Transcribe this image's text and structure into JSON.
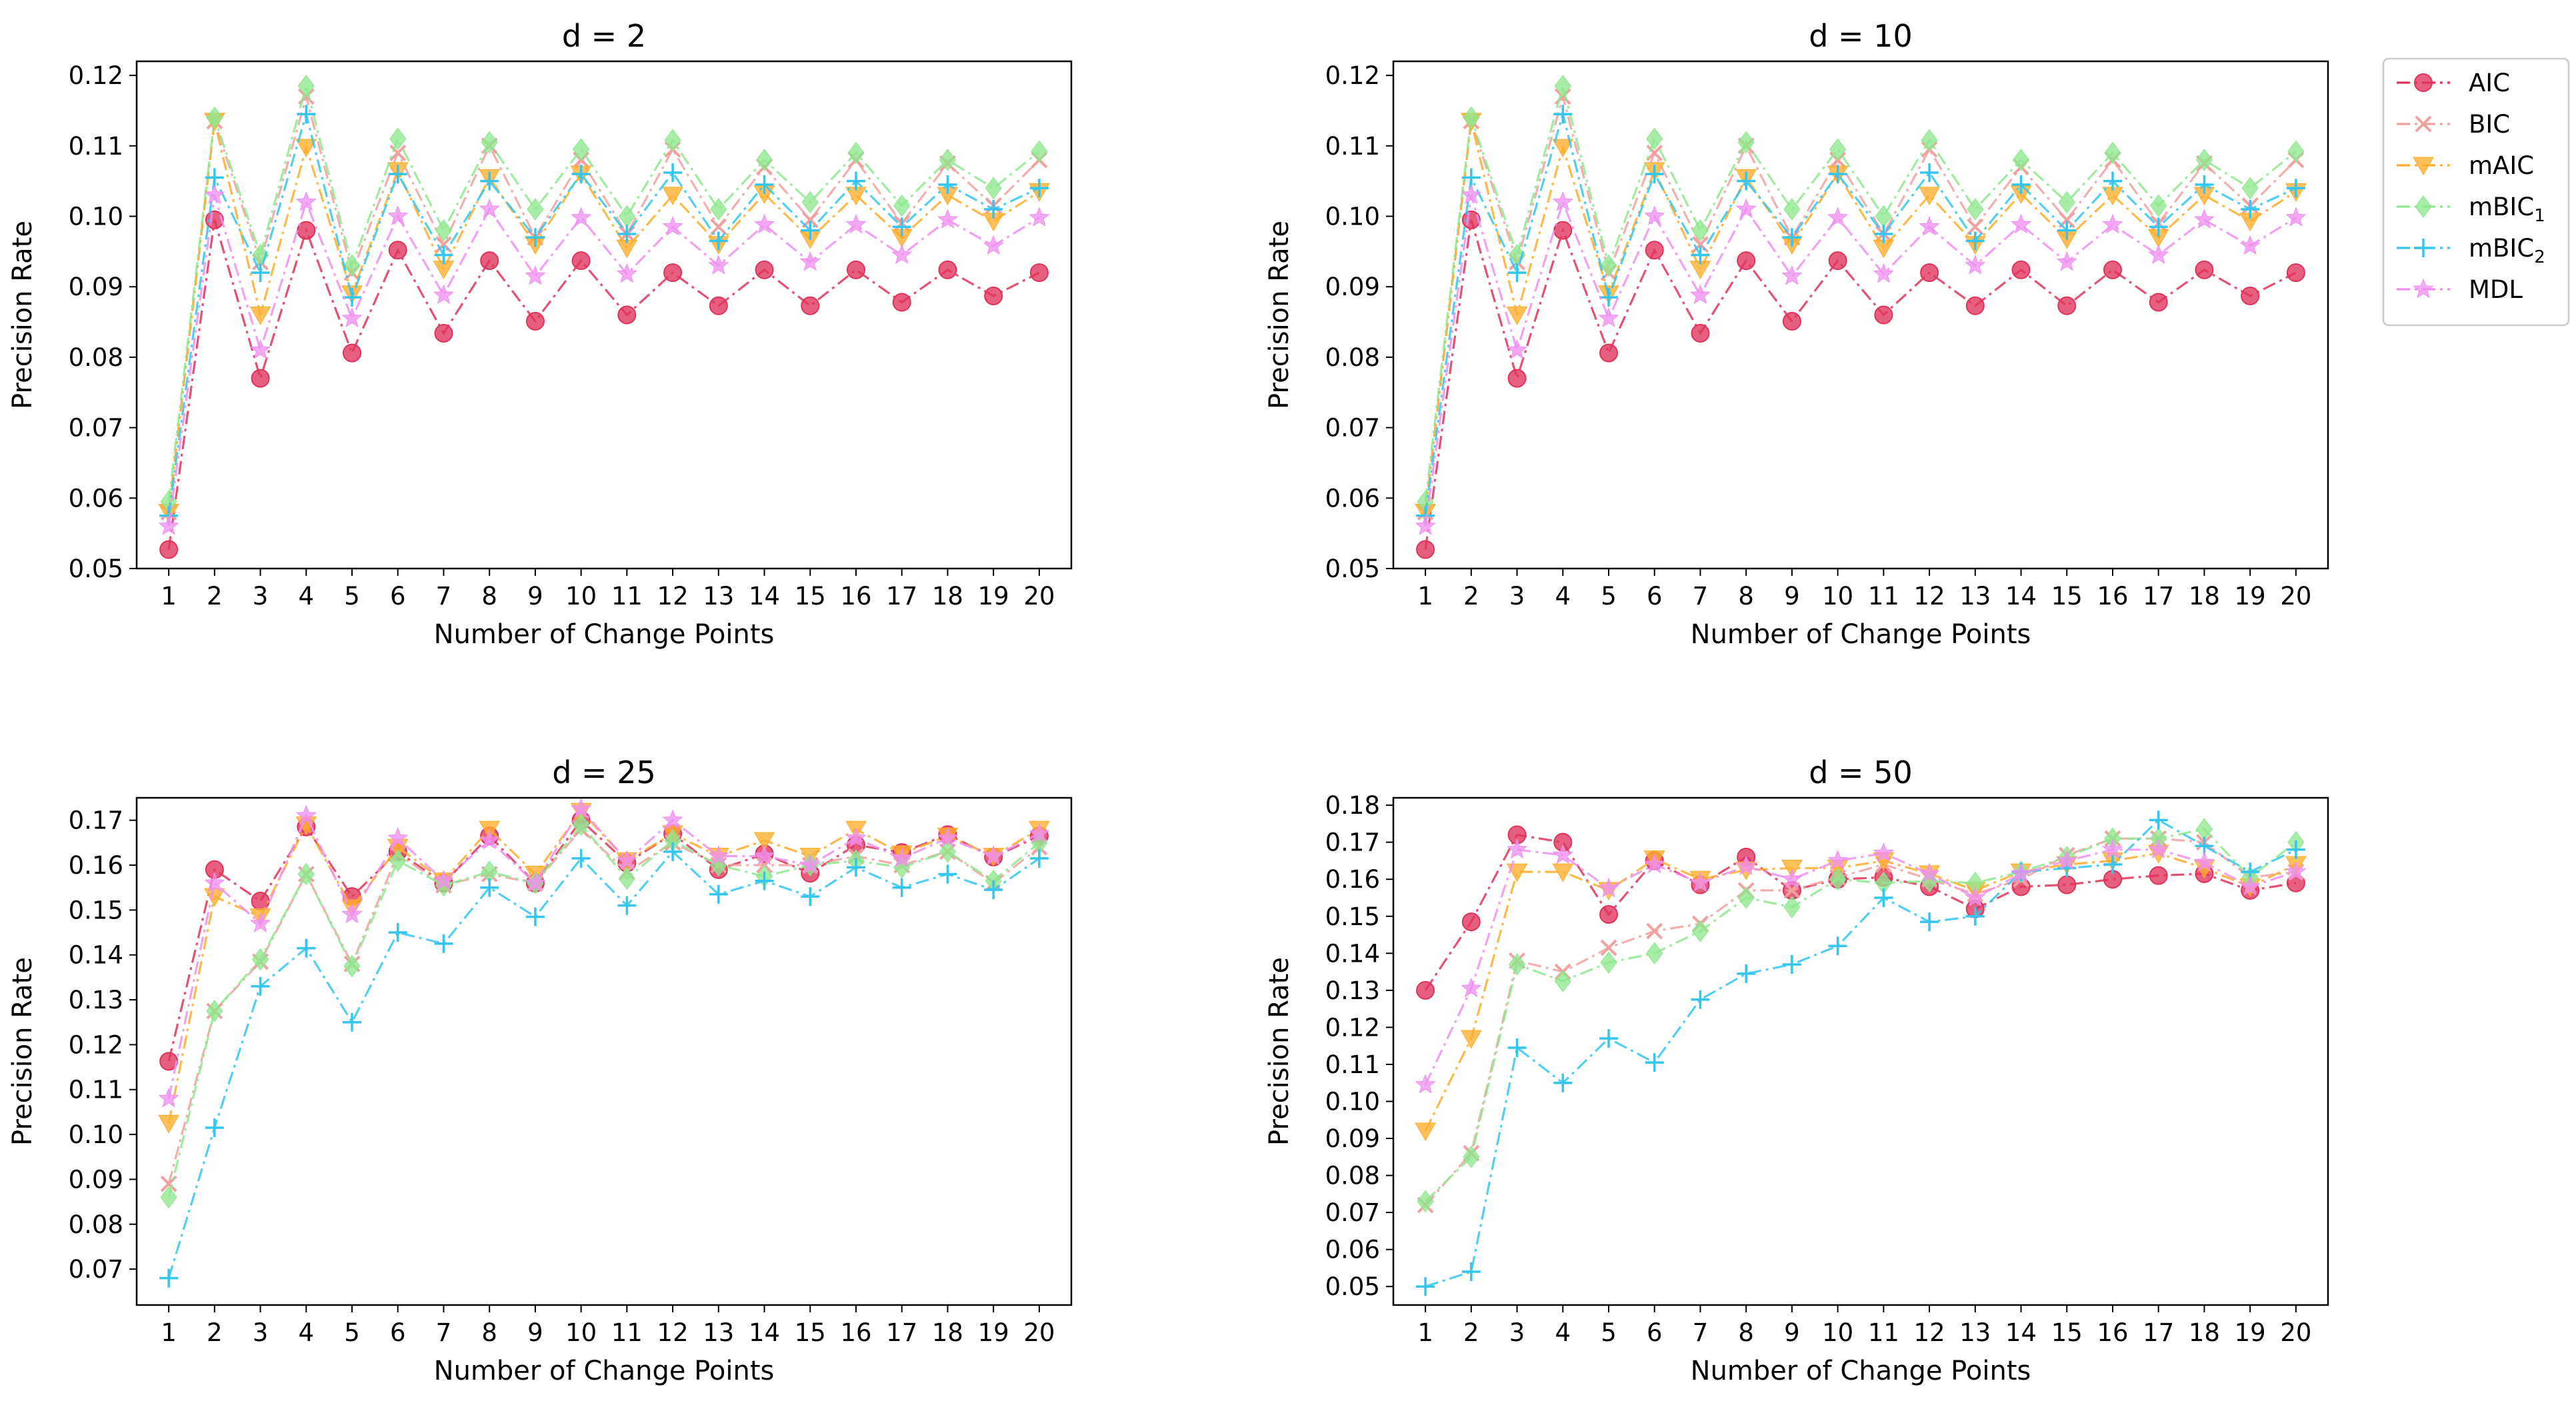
{
  "chart_data": [
    {
      "type": "line",
      "title": "d = 2",
      "xlabel": "Number of Change Points",
      "ylabel": "Precision Rate",
      "ylim": [
        0.05,
        0.122
      ],
      "yticks": [
        0.05,
        0.06,
        0.07,
        0.08,
        0.09,
        0.1,
        0.11,
        0.12
      ],
      "ytick_labels": [
        "0.05",
        "0.06",
        "0.07",
        "0.08",
        "0.09",
        "0.10",
        "0.11",
        "0.12"
      ],
      "x": [
        1,
        2,
        3,
        4,
        5,
        6,
        7,
        8,
        9,
        10,
        11,
        12,
        13,
        14,
        15,
        16,
        17,
        18,
        19,
        20
      ],
      "series": [
        {
          "name": "AIC",
          "values": [
            0.0527,
            0.0995,
            0.077,
            0.098,
            0.0806,
            0.0952,
            0.0834,
            0.0937,
            0.0851,
            0.0937,
            0.086,
            0.092,
            0.0873,
            0.0924,
            0.0873,
            0.0924,
            0.0878,
            0.0924,
            0.0887,
            0.092
          ]
        },
        {
          "name": "BIC",
          "values": [
            0.058,
            0.1135,
            0.0935,
            0.117,
            0.092,
            0.109,
            0.096,
            0.11,
            0.097,
            0.108,
            0.0975,
            0.1095,
            0.0985,
            0.107,
            0.0995,
            0.108,
            0.099,
            0.1075,
            0.1015,
            0.108
          ]
        },
        {
          "name": "mAIC",
          "values": [
            0.058,
            0.1135,
            0.086,
            0.1098,
            0.089,
            0.1065,
            0.0925,
            0.1055,
            0.096,
            0.106,
            0.0955,
            0.103,
            0.096,
            0.1032,
            0.0968,
            0.103,
            0.097,
            0.103,
            0.0993,
            0.1035
          ]
        },
        {
          "name": "mBIC1",
          "values": [
            0.0595,
            0.114,
            0.0945,
            0.1185,
            0.093,
            0.111,
            0.098,
            0.1105,
            0.101,
            0.1095,
            0.1,
            0.1108,
            0.101,
            0.108,
            0.102,
            0.109,
            0.1015,
            0.108,
            0.104,
            0.1092
          ]
        },
        {
          "name": "mBIC2",
          "values": [
            0.0575,
            0.1055,
            0.092,
            0.1145,
            0.0885,
            0.106,
            0.0945,
            0.105,
            0.097,
            0.106,
            0.0975,
            0.1062,
            0.0965,
            0.1045,
            0.098,
            0.105,
            0.0985,
            0.1045,
            0.101,
            0.104
          ]
        },
        {
          "name": "MDL",
          "values": [
            0.056,
            0.103,
            0.081,
            0.102,
            0.0855,
            0.1,
            0.0888,
            0.101,
            0.0915,
            0.0998,
            0.0918,
            0.0985,
            0.093,
            0.0988,
            0.0935,
            0.0988,
            0.0945,
            0.0995,
            0.0958,
            0.0998
          ]
        }
      ]
    },
    {
      "type": "line",
      "title": "d = 10",
      "xlabel": "Number of Change Points",
      "ylabel": "Precision Rate",
      "ylim": [
        0.05,
        0.122
      ],
      "yticks": [
        0.05,
        0.06,
        0.07,
        0.08,
        0.09,
        0.1,
        0.11,
        0.12
      ],
      "ytick_labels": [
        "0.05",
        "0.06",
        "0.07",
        "0.08",
        "0.09",
        "0.10",
        "0.11",
        "0.12"
      ],
      "x": [
        1,
        2,
        3,
        4,
        5,
        6,
        7,
        8,
        9,
        10,
        11,
        12,
        13,
        14,
        15,
        16,
        17,
        18,
        19,
        20
      ],
      "series": [
        {
          "name": "AIC",
          "values": [
            0.0527,
            0.0995,
            0.077,
            0.098,
            0.0806,
            0.0952,
            0.0834,
            0.0937,
            0.0851,
            0.0937,
            0.086,
            0.092,
            0.0873,
            0.0924,
            0.0873,
            0.0924,
            0.0878,
            0.0924,
            0.0887,
            0.092
          ]
        },
        {
          "name": "BIC",
          "values": [
            0.058,
            0.1135,
            0.0935,
            0.117,
            0.092,
            0.109,
            0.096,
            0.11,
            0.097,
            0.108,
            0.0975,
            0.1095,
            0.0985,
            0.107,
            0.0995,
            0.108,
            0.099,
            0.1075,
            0.1015,
            0.108
          ]
        },
        {
          "name": "mAIC",
          "values": [
            0.058,
            0.1135,
            0.086,
            0.1098,
            0.089,
            0.1065,
            0.0925,
            0.1055,
            0.096,
            0.106,
            0.0955,
            0.103,
            0.096,
            0.1032,
            0.0968,
            0.103,
            0.097,
            0.103,
            0.0993,
            0.1035
          ]
        },
        {
          "name": "mBIC1",
          "values": [
            0.0595,
            0.114,
            0.0945,
            0.1185,
            0.093,
            0.111,
            0.098,
            0.1105,
            0.101,
            0.1095,
            0.1,
            0.1108,
            0.101,
            0.108,
            0.102,
            0.109,
            0.1015,
            0.108,
            0.104,
            0.1092
          ]
        },
        {
          "name": "mBIC2",
          "values": [
            0.0575,
            0.1055,
            0.092,
            0.1145,
            0.0885,
            0.106,
            0.0945,
            0.105,
            0.097,
            0.106,
            0.0975,
            0.1062,
            0.0965,
            0.1045,
            0.098,
            0.105,
            0.0985,
            0.1045,
            0.101,
            0.104
          ]
        },
        {
          "name": "MDL",
          "values": [
            0.056,
            0.103,
            0.081,
            0.102,
            0.0855,
            0.1,
            0.0888,
            0.101,
            0.0915,
            0.0998,
            0.0918,
            0.0985,
            0.093,
            0.0988,
            0.0935,
            0.0988,
            0.0945,
            0.0995,
            0.0958,
            0.0998
          ]
        }
      ]
    },
    {
      "type": "line",
      "title": "d = 25",
      "xlabel": "Number of Change Points",
      "ylabel": "Precision Rate",
      "ylim": [
        0.062,
        0.175
      ],
      "yticks": [
        0.07,
        0.08,
        0.09,
        0.1,
        0.11,
        0.12,
        0.13,
        0.14,
        0.15,
        0.16,
        0.17
      ],
      "ytick_labels": [
        "0.07",
        "0.08",
        "0.09",
        "0.10",
        "0.11",
        "0.12",
        "0.13",
        "0.14",
        "0.15",
        "0.16",
        "0.17"
      ],
      "x": [
        1,
        2,
        3,
        4,
        5,
        6,
        7,
        8,
        9,
        10,
        11,
        12,
        13,
        14,
        15,
        16,
        17,
        18,
        19,
        20
      ],
      "series": [
        {
          "name": "AIC",
          "values": [
            0.1163,
            0.159,
            0.152,
            0.1685,
            0.153,
            0.163,
            0.156,
            0.1665,
            0.156,
            0.17,
            0.1605,
            0.167,
            0.159,
            0.1625,
            0.1582,
            0.1645,
            0.1628,
            0.1668,
            0.1618,
            0.1665
          ]
        },
        {
          "name": "BIC",
          "values": [
            0.089,
            0.1275,
            0.1385,
            0.158,
            0.138,
            0.1625,
            0.1555,
            0.158,
            0.156,
            0.168,
            0.1585,
            0.165,
            0.16,
            0.16,
            0.16,
            0.162,
            0.16,
            0.163,
            0.156,
            0.164
          ]
        },
        {
          "name": "mAIC",
          "values": [
            0.1025,
            0.153,
            0.1485,
            0.169,
            0.1505,
            0.164,
            0.1565,
            0.168,
            0.158,
            0.172,
            0.161,
            0.167,
            0.162,
            0.1655,
            0.162,
            0.168,
            0.1625,
            0.1665,
            0.162,
            0.168
          ]
        },
        {
          "name": "mBIC1",
          "values": [
            0.086,
            0.1275,
            0.139,
            0.158,
            0.1375,
            0.161,
            0.1555,
            0.1585,
            0.156,
            0.169,
            0.157,
            0.1655,
            0.16,
            0.1575,
            0.16,
            0.161,
            0.1595,
            0.163,
            0.1565,
            0.165
          ]
        },
        {
          "name": "mBIC2",
          "values": [
            0.068,
            0.1015,
            0.133,
            0.1415,
            0.125,
            0.145,
            0.1425,
            0.155,
            0.1485,
            0.1615,
            0.151,
            0.163,
            0.1535,
            0.1565,
            0.153,
            0.1595,
            0.155,
            0.158,
            0.1545,
            0.1615
          ]
        },
        {
          "name": "MDL",
          "values": [
            0.108,
            0.156,
            0.147,
            0.171,
            0.149,
            0.166,
            0.1565,
            0.1655,
            0.156,
            0.1725,
            0.161,
            0.17,
            0.162,
            0.162,
            0.16,
            0.166,
            0.1615,
            0.166,
            0.162,
            0.167
          ]
        }
      ]
    },
    {
      "type": "line",
      "title": "d = 50",
      "xlabel": "Number of Change Points",
      "ylabel": "Precision Rate",
      "ylim": [
        0.045,
        0.182
      ],
      "yticks": [
        0.05,
        0.06,
        0.07,
        0.08,
        0.09,
        0.1,
        0.11,
        0.12,
        0.13,
        0.14,
        0.15,
        0.16,
        0.17,
        0.18
      ],
      "ytick_labels": [
        "0.05",
        "0.06",
        "0.07",
        "0.08",
        "0.09",
        "0.10",
        "0.11",
        "0.12",
        "0.13",
        "0.14",
        "0.15",
        "0.16",
        "0.17",
        "0.18"
      ],
      "x": [
        1,
        2,
        3,
        4,
        5,
        6,
        7,
        8,
        9,
        10,
        11,
        12,
        13,
        14,
        15,
        16,
        17,
        18,
        19,
        20
      ],
      "series": [
        {
          "name": "AIC",
          "values": [
            0.13,
            0.1485,
            0.172,
            0.17,
            0.1505,
            0.165,
            0.1585,
            0.166,
            0.157,
            0.16,
            0.1605,
            0.158,
            0.152,
            0.158,
            0.1585,
            0.16,
            0.161,
            0.1615,
            0.157,
            0.159
          ]
        },
        {
          "name": "BIC",
          "values": [
            0.072,
            0.086,
            0.138,
            0.135,
            0.1415,
            0.146,
            0.148,
            0.157,
            0.157,
            0.1605,
            0.164,
            0.16,
            0.156,
            0.16,
            0.1665,
            0.171,
            0.171,
            0.17,
            0.1605,
            0.162
          ]
        },
        {
          "name": "mAIC",
          "values": [
            0.092,
            0.117,
            0.162,
            0.162,
            0.157,
            0.1655,
            0.16,
            0.1625,
            0.163,
            0.163,
            0.165,
            0.1615,
            0.157,
            0.162,
            0.164,
            0.165,
            0.167,
            0.163,
            0.158,
            0.164
          ]
        },
        {
          "name": "mBIC1",
          "values": [
            0.073,
            0.085,
            0.137,
            0.1325,
            0.1375,
            0.14,
            0.146,
            0.155,
            0.1525,
            0.16,
            0.159,
            0.1595,
            0.159,
            0.162,
            0.166,
            0.171,
            0.171,
            0.1735,
            0.1605,
            0.17
          ]
        },
        {
          "name": "mBIC2",
          "values": [
            0.05,
            0.054,
            0.1145,
            0.105,
            0.117,
            0.1105,
            0.1275,
            0.1345,
            0.137,
            0.142,
            0.155,
            0.1485,
            0.15,
            0.162,
            0.163,
            0.164,
            0.176,
            0.169,
            0.162,
            0.168
          ]
        },
        {
          "name": "MDL",
          "values": [
            0.1045,
            0.1305,
            0.168,
            0.1665,
            0.1575,
            0.164,
            0.159,
            0.1635,
            0.16,
            0.165,
            0.167,
            0.1615,
            0.155,
            0.1615,
            0.165,
            0.168,
            0.168,
            0.1645,
            0.158,
            0.162
          ]
        }
      ]
    }
  ],
  "legend": {
    "placement": "right-top",
    "entries": [
      {
        "name": "AIC",
        "label": "AIC",
        "sub": "",
        "color": "#e0325a",
        "marker": "circle",
        "dash": "dash-dot"
      },
      {
        "name": "BIC",
        "label": "BIC",
        "sub": "",
        "color": "#f2a0a0",
        "marker": "x",
        "dash": "dash-dot"
      },
      {
        "name": "mAIC",
        "label": "mAIC",
        "sub": "",
        "color": "#ffad2a",
        "marker": "triangle-down",
        "dash": "dash-dot"
      },
      {
        "name": "mBIC1",
        "label": "mBIC",
        "sub": "1",
        "color": "#8ee88e",
        "marker": "diamond",
        "dash": "dash-dot"
      },
      {
        "name": "mBIC2",
        "label": "mBIC",
        "sub": "2",
        "color": "#34c5f0",
        "marker": "plus",
        "dash": "dash-dot"
      },
      {
        "name": "MDL",
        "label": "MDL",
        "sub": "",
        "color": "#f08ff0",
        "marker": "star",
        "dash": "dash-dot"
      }
    ]
  }
}
